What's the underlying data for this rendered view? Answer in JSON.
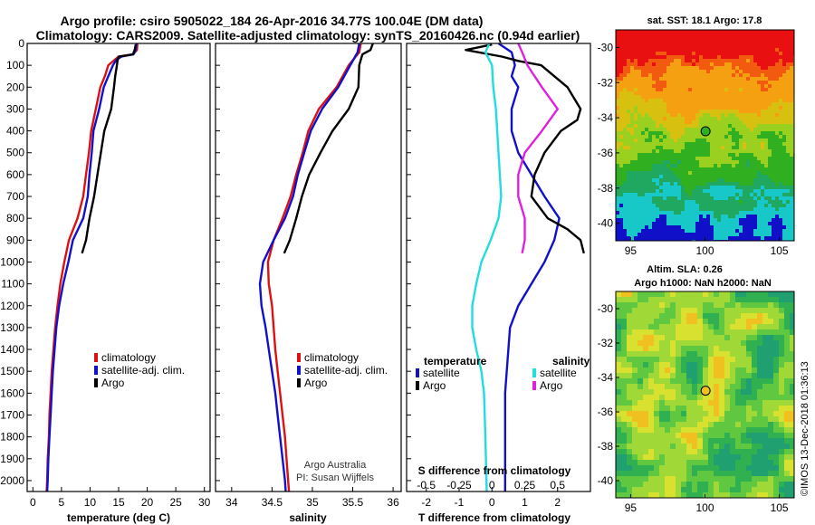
{
  "title_line1": "Argo profile: csiro 5905022_184 26-Apr-2016 34.77S 100.04E (DM data)",
  "title_line2": "Climatology: CARS2009. Satellite-adjusted climatology: synTS_20160426.nc (0.94d earlier)",
  "credit_line1": "Argo Australia",
  "credit_line2": "PI: Susan Wijffels",
  "timestamp": "©IMOS 13-Dec-2018 01:36:13",
  "colors": {
    "climatology": "#dd1111",
    "satellite": "#1111cc",
    "argo": "#000000",
    "s_satellite": "#22dddd",
    "s_argo": "#dd22dd"
  },
  "chart_data": [
    {
      "type": "line",
      "xlabel": "temperature (deg C)",
      "ylabel": "",
      "xlim": [
        -1,
        31
      ],
      "ylim": [
        2050,
        0
      ],
      "xticks": [
        0,
        5,
        10,
        15,
        20,
        25,
        30
      ],
      "yticks": [
        0,
        100,
        200,
        300,
        400,
        500,
        600,
        700,
        800,
        900,
        1000,
        1100,
        1200,
        1300,
        1400,
        1500,
        1600,
        1700,
        1800,
        1900,
        2000
      ],
      "legend": [
        "climatology",
        "satellite-adj. clim.",
        "Argo"
      ],
      "series": [
        {
          "name": "climatology",
          "color": "#dd1111",
          "points": [
            [
              18.3,
              0
            ],
            [
              18.2,
              30
            ],
            [
              17.5,
              50
            ],
            [
              15,
              60
            ],
            [
              14.3,
              75
            ],
            [
              13.2,
              100
            ],
            [
              12.6,
              150
            ],
            [
              11.8,
              200
            ],
            [
              11,
              300
            ],
            [
              10.2,
              400
            ],
            [
              9.8,
              500
            ],
            [
              9.3,
              600
            ],
            [
              8.8,
              700
            ],
            [
              7.8,
              800
            ],
            [
              6.3,
              900
            ],
            [
              5.5,
              1000
            ],
            [
              4.8,
              1100
            ],
            [
              4.3,
              1200
            ],
            [
              3.9,
              1300
            ],
            [
              3.6,
              1400
            ],
            [
              3.3,
              1500
            ],
            [
              3.1,
              1600
            ],
            [
              2.9,
              1700
            ],
            [
              2.8,
              1800
            ],
            [
              2.6,
              1900
            ],
            [
              2.5,
              2000
            ],
            [
              2.4,
              2050
            ]
          ]
        },
        {
          "name": "satellite-adj. clim.",
          "color": "#1111cc",
          "points": [
            [
              18.1,
              0
            ],
            [
              18,
              30
            ],
            [
              17.6,
              50
            ],
            [
              15.5,
              60
            ],
            [
              14.6,
              75
            ],
            [
              14,
              100
            ],
            [
              13.2,
              150
            ],
            [
              12.4,
              200
            ],
            [
              11.6,
              300
            ],
            [
              10.6,
              400
            ],
            [
              10.3,
              500
            ],
            [
              9.9,
              600
            ],
            [
              9.6,
              700
            ],
            [
              8.8,
              800
            ],
            [
              7,
              900
            ],
            [
              6.2,
              1000
            ],
            [
              5.3,
              1100
            ],
            [
              4.6,
              1200
            ],
            [
              4.1,
              1300
            ],
            [
              3.8,
              1400
            ],
            [
              3.5,
              1500
            ],
            [
              3.3,
              1600
            ],
            [
              3.1,
              1700
            ],
            [
              2.9,
              1800
            ],
            [
              2.7,
              1900
            ],
            [
              2.6,
              2000
            ],
            [
              2.5,
              2050
            ]
          ]
        },
        {
          "name": "Argo",
          "color": "#000000",
          "points": [
            [
              18,
              5
            ],
            [
              17.8,
              30
            ],
            [
              17.5,
              50
            ],
            [
              15,
              60
            ],
            [
              14.8,
              80
            ],
            [
              14.7,
              100
            ],
            [
              14.4,
              150
            ],
            [
              14.2,
              200
            ],
            [
              13.7,
              300
            ],
            [
              12.5,
              400
            ],
            [
              11.9,
              500
            ],
            [
              11.3,
              600
            ],
            [
              10.7,
              700
            ],
            [
              9.9,
              800
            ],
            [
              9.3,
              900
            ],
            [
              8.6,
              960
            ]
          ]
        }
      ]
    },
    {
      "type": "line",
      "xlabel": "salinity",
      "ylabel": "",
      "xlim": [
        33.8,
        36.1
      ],
      "ylim": [
        2050,
        0
      ],
      "xticks": [
        34,
        34.5,
        35,
        35.5,
        36
      ],
      "legend": [
        "climatology",
        "satellite-adj. clim.",
        "Argo"
      ],
      "series": [
        {
          "name": "climatology",
          "color": "#dd1111",
          "points": [
            [
              35.6,
              0
            ],
            [
              35.58,
              40
            ],
            [
              35.45,
              100
            ],
            [
              35.3,
              200
            ],
            [
              35.08,
              300
            ],
            [
              34.95,
              400
            ],
            [
              34.88,
              500
            ],
            [
              34.8,
              600
            ],
            [
              34.73,
              700
            ],
            [
              34.63,
              800
            ],
            [
              34.52,
              900
            ],
            [
              34.45,
              1000
            ],
            [
              34.46,
              1100
            ],
            [
              34.5,
              1200
            ],
            [
              34.52,
              1300
            ],
            [
              34.54,
              1400
            ],
            [
              34.57,
              1500
            ],
            [
              34.6,
              1600
            ],
            [
              34.63,
              1700
            ],
            [
              34.66,
              1800
            ],
            [
              34.68,
              1900
            ],
            [
              34.7,
              2000
            ],
            [
              34.71,
              2050
            ]
          ]
        },
        {
          "name": "satellite-adj. clim.",
          "color": "#1111cc",
          "points": [
            [
              35.58,
              0
            ],
            [
              35.56,
              40
            ],
            [
              35.47,
              100
            ],
            [
              35.32,
              200
            ],
            [
              35.12,
              300
            ],
            [
              34.98,
              400
            ],
            [
              34.9,
              500
            ],
            [
              34.82,
              600
            ],
            [
              34.76,
              700
            ],
            [
              34.66,
              800
            ],
            [
              34.52,
              900
            ],
            [
              34.39,
              1000
            ],
            [
              34.35,
              1100
            ],
            [
              34.37,
              1200
            ],
            [
              34.42,
              1300
            ],
            [
              34.46,
              1400
            ],
            [
              34.5,
              1500
            ],
            [
              34.54,
              1600
            ],
            [
              34.57,
              1700
            ],
            [
              34.6,
              1800
            ],
            [
              34.63,
              1900
            ],
            [
              34.66,
              2000
            ],
            [
              34.67,
              2050
            ]
          ]
        },
        {
          "name": "Argo",
          "color": "#000000",
          "points": [
            [
              35.75,
              0
            ],
            [
              35.72,
              30
            ],
            [
              35.62,
              50
            ],
            [
              35.58,
              100
            ],
            [
              35.57,
              200
            ],
            [
              35.45,
              300
            ],
            [
              35.25,
              400
            ],
            [
              35.1,
              500
            ],
            [
              34.96,
              600
            ],
            [
              34.87,
              700
            ],
            [
              34.8,
              800
            ],
            [
              34.72,
              900
            ],
            [
              34.65,
              960
            ]
          ]
        }
      ]
    },
    {
      "type": "line",
      "xlabel": "T difference from climatology",
      "ylabel": "",
      "xlim": [
        -2.6,
        3.0
      ],
      "ylim": [
        2050,
        0
      ],
      "xticks": [
        -2,
        -1,
        0,
        1,
        2
      ],
      "secondary_xlabel": "S difference from climatology",
      "secondary_xticks": [
        -0.5,
        -0.25,
        0,
        0.25,
        0.5
      ],
      "secondary_xlim": [
        -0.65,
        0.75
      ],
      "legend": {
        "temperature": [
          "satellite",
          "Argo"
        ],
        "salinity": [
          "satellite",
          "Argo"
        ]
      },
      "legend_titles": [
        "temperature",
        "salinity"
      ],
      "series": [
        {
          "name": "satellite",
          "group": "temperature",
          "color": "#1111cc",
          "points": [
            [
              0.2,
              0
            ],
            [
              0.6,
              40
            ],
            [
              0.7,
              100
            ],
            [
              0.6,
              150
            ],
            [
              0.8,
              200
            ],
            [
              0.6,
              300
            ],
            [
              0.6,
              400
            ],
            [
              0.8,
              500
            ],
            [
              1.2,
              600
            ],
            [
              1.6,
              700
            ],
            [
              2.05,
              800
            ],
            [
              1.9,
              900
            ],
            [
              1.6,
              1000
            ],
            [
              1.2,
              1100
            ],
            [
              0.8,
              1200
            ],
            [
              0.55,
              1300
            ],
            [
              0.5,
              1400
            ],
            [
              0.45,
              1500
            ],
            [
              0.4,
              1600
            ],
            [
              0.4,
              1800
            ],
            [
              0.4,
              2050
            ]
          ]
        },
        {
          "name": "Argo",
          "group": "temperature",
          "color": "#000000",
          "points": [
            [
              0,
              5
            ],
            [
              -0.8,
              30
            ],
            [
              0.3,
              60
            ],
            [
              0.8,
              80
            ],
            [
              1.5,
              100
            ],
            [
              2.3,
              200
            ],
            [
              2.7,
              300
            ],
            [
              2.6,
              350
            ],
            [
              2.1,
              400
            ],
            [
              1.6,
              500
            ],
            [
              1.3,
              600
            ],
            [
              1.2,
              700
            ],
            [
              1.7,
              800
            ],
            [
              2.3,
              850
            ],
            [
              2.7,
              900
            ],
            [
              2.8,
              960
            ]
          ]
        },
        {
          "name": "satellite",
          "group": "salinity",
          "color": "#22dddd",
          "points": [
            [
              -0.02,
              0
            ],
            [
              -0.05,
              40
            ],
            [
              0,
              100
            ],
            [
              0.01,
              200
            ],
            [
              0.03,
              300
            ],
            [
              0.05,
              500
            ],
            [
              0.07,
              700
            ],
            [
              0.05,
              800
            ],
            [
              -0.01,
              900
            ],
            [
              -0.08,
              1000
            ],
            [
              -0.12,
              1100
            ],
            [
              -0.15,
              1200
            ],
            [
              -0.15,
              1300
            ],
            [
              -0.12,
              1400
            ],
            [
              -0.08,
              1500
            ],
            [
              -0.06,
              1600
            ],
            [
              -0.05,
              1800
            ],
            [
              -0.04,
              2050
            ]
          ]
        },
        {
          "name": "Argo",
          "group": "salinity",
          "color": "#dd22dd",
          "points": [
            [
              0.2,
              0
            ],
            [
              0.23,
              40
            ],
            [
              0.27,
              100
            ],
            [
              0.38,
              200
            ],
            [
              0.5,
              300
            ],
            [
              0.38,
              400
            ],
            [
              0.25,
              500
            ],
            [
              0.2,
              600
            ],
            [
              0.2,
              700
            ],
            [
              0.25,
              800
            ],
            [
              0.25,
              900
            ],
            [
              0.23,
              960
            ]
          ]
        }
      ]
    },
    {
      "type": "heatmap",
      "title": "sat. SST: 18.1 Argo: 17.8",
      "xticks": [
        95,
        100,
        105
      ],
      "yticks": [
        -30,
        -32,
        -34,
        -36,
        -38,
        -40
      ],
      "xlim": [
        94,
        106
      ],
      "ylim": [
        -41,
        -29
      ],
      "marker": [
        100.04,
        -34.77
      ]
    },
    {
      "type": "heatmap",
      "title_line1": "Altim. SLA: 0.26",
      "title_line2": "Argo h1000: NaN h2000: NaN",
      "xticks": [
        95,
        100,
        105
      ],
      "yticks": [
        -30,
        -32,
        -34,
        -36,
        -38,
        -40
      ],
      "xlim": [
        94,
        106
      ],
      "ylim": [
        -41,
        -29
      ],
      "marker": [
        100.04,
        -34.77
      ]
    }
  ]
}
